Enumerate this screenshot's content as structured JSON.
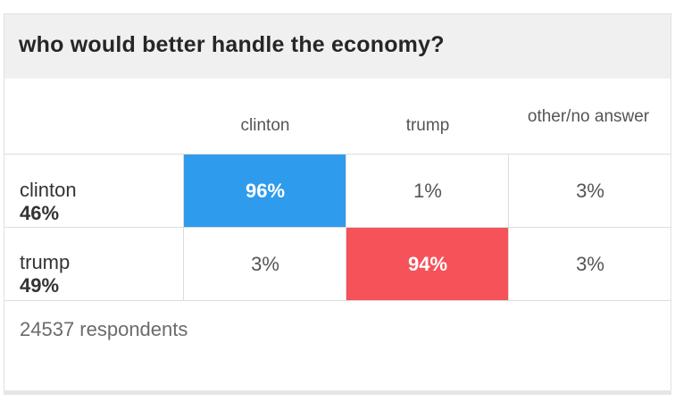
{
  "title": "who would better handle the economy?",
  "footer": "24537 respondents",
  "colors": {
    "clinton": "#2e9bed",
    "trump": "#f5525a"
  },
  "chart_data": {
    "type": "table",
    "title": "who would better handle the economy?",
    "columns": [
      "clinton",
      "trump",
      "other/no answer"
    ],
    "rows": [
      {
        "name": "clinton",
        "share": "46%",
        "values": [
          "96%",
          "1%",
          "3%"
        ],
        "highlight": 0
      },
      {
        "name": "trump",
        "share": "49%",
        "values": [
          "3%",
          "94%",
          "3%"
        ],
        "highlight": 1
      }
    ],
    "respondents": 24537
  }
}
